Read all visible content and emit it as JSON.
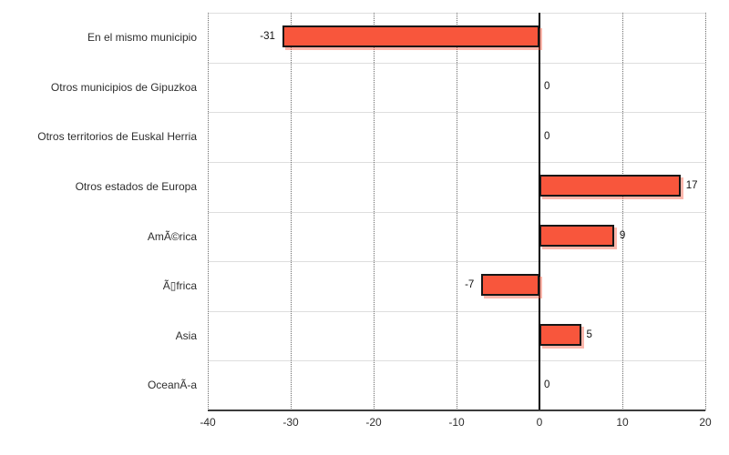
{
  "chart_data": {
    "type": "bar",
    "orientation": "horizontal",
    "title": "",
    "xlabel": "",
    "ylabel": "",
    "categories": [
      "En el mismo municipio",
      "Otros municipios de Gipuzkoa",
      "Otros territorios de Euskal Herria",
      "Otros estados de Europa",
      "AmÃ©rica",
      "Ã▯frica",
      "Asia",
      "OceanÃ-a"
    ],
    "values": [
      -31,
      0,
      0,
      17,
      9,
      -7,
      5,
      0
    ],
    "data_labels": [
      "-31",
      "0",
      "0",
      "17",
      "9",
      "-7",
      "5",
      "0"
    ],
    "xlim": [
      -40,
      20
    ],
    "xticks": [
      -40,
      -30,
      -20,
      -10,
      0,
      10,
      20
    ],
    "xtick_labels": [
      "-40",
      "-30",
      "-20",
      "-10",
      "0",
      "10",
      "20"
    ],
    "grid": "dotted-vertical",
    "zero_line": true,
    "legend": "none",
    "style": {
      "bar_fill": "#f8563c",
      "bar_border": "#161616",
      "bar_shadow": "rgba(248,96,70,0.45)",
      "grid_color": "#6b6b6b",
      "row_separator_color": "#dedede",
      "axis_color": "#3c3c3c",
      "zero_line_color": "#000000",
      "text_color": "#2e2e2e",
      "background": "#ffffff"
    }
  }
}
